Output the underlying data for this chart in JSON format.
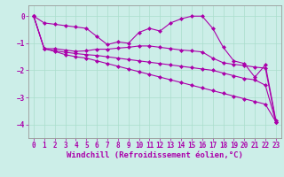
{
  "background_color": "#cceee8",
  "grid_color": "#aaddcc",
  "line_color": "#aa00aa",
  "marker": "D",
  "marker_size": 2.0,
  "line_width": 0.8,
  "xlabel": "Windchill (Refroidissement éolien,°C)",
  "xlabel_fontsize": 6.5,
  "tick_fontsize": 5.5,
  "xlim": [
    -0.5,
    23.5
  ],
  "ylim": [
    -4.5,
    0.4
  ],
  "yticks": [
    0,
    -1,
    -2,
    -3,
    -4
  ],
  "xticks": [
    0,
    1,
    2,
    3,
    4,
    5,
    6,
    7,
    8,
    9,
    10,
    11,
    12,
    13,
    14,
    15,
    16,
    17,
    18,
    19,
    20,
    21,
    22,
    23
  ],
  "series": [
    [
      0.0,
      -0.25,
      -0.3,
      -0.35,
      -0.4,
      -0.45,
      -0.75,
      -1.05,
      -0.95,
      -1.0,
      -0.6,
      -0.45,
      -0.55,
      -0.25,
      -0.1,
      0.0,
      0.0,
      -0.45,
      -1.15,
      -1.65,
      -1.75,
      -2.25,
      -1.8,
      -3.85
    ],
    [
      0.0,
      -1.2,
      -1.2,
      -1.25,
      -1.3,
      -1.28,
      -1.22,
      -1.22,
      -1.18,
      -1.15,
      -1.1,
      -1.1,
      -1.15,
      -1.2,
      -1.25,
      -1.28,
      -1.32,
      -1.55,
      -1.72,
      -1.78,
      -1.82,
      -1.88,
      -1.92,
      -3.9
    ],
    [
      0.0,
      -1.2,
      -1.28,
      -1.33,
      -1.38,
      -1.42,
      -1.45,
      -1.5,
      -1.55,
      -1.6,
      -1.65,
      -1.7,
      -1.75,
      -1.8,
      -1.85,
      -1.9,
      -1.95,
      -2.0,
      -2.1,
      -2.2,
      -2.3,
      -2.35,
      -2.55,
      -3.9
    ],
    [
      0.0,
      -1.2,
      -1.3,
      -1.42,
      -1.5,
      -1.55,
      -1.65,
      -1.75,
      -1.85,
      -1.95,
      -2.05,
      -2.15,
      -2.25,
      -2.35,
      -2.45,
      -2.55,
      -2.65,
      -2.75,
      -2.85,
      -2.95,
      -3.05,
      -3.15,
      -3.25,
      -3.9
    ]
  ]
}
